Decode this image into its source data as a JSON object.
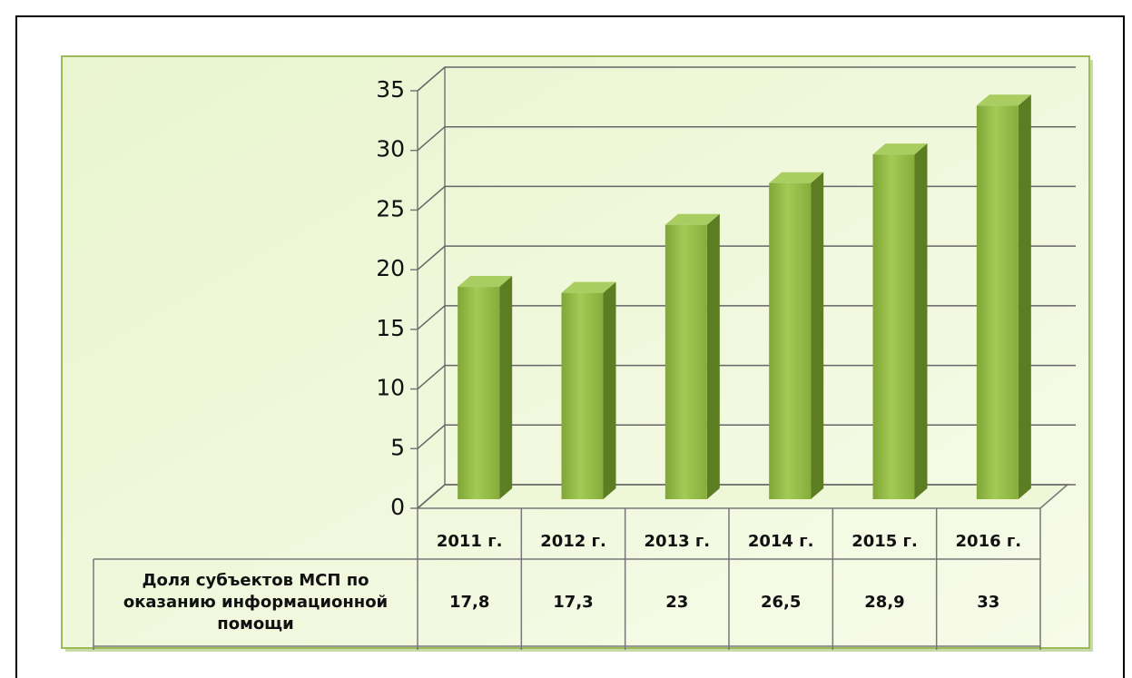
{
  "chart_data": {
    "type": "bar3d",
    "categories": [
      "2011 г.",
      "2012 г.",
      "2013 г.",
      "2014 г.",
      "2015 г.",
      "2016 г."
    ],
    "series": [
      {
        "name": "Доля субъектов МСП по оказанию информационной помощи",
        "color": "#8db63c",
        "values": [
          17.8,
          17.3,
          23,
          26.5,
          28.9,
          33
        ],
        "value_labels": [
          "17,8",
          "17,3",
          "23",
          "26,5",
          "28,9",
          "33"
        ]
      }
    ],
    "ylim": [
      0,
      35
    ],
    "yticks": [
      0,
      5,
      10,
      15,
      20,
      25,
      30,
      35
    ],
    "grid": true
  }
}
